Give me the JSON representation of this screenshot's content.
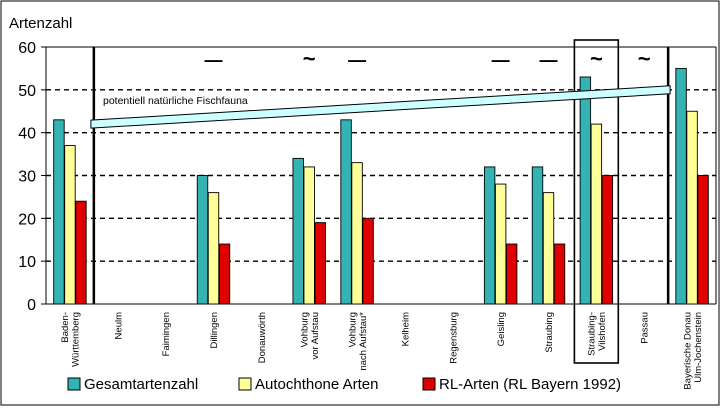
{
  "chart_data": {
    "type": "bar",
    "ylabel": "Artenzahl",
    "ylim": [
      0,
      60
    ],
    "yticks": [
      0,
      10,
      20,
      30,
      40,
      50,
      60
    ],
    "gridlines": [
      10,
      20,
      30,
      40,
      50
    ],
    "categories": [
      "Baden-\nWürttemberg",
      "Neulm",
      "Faimingen",
      "Dillingen",
      "Donauwörth",
      "Vohburg\nvor Aufstau",
      "Vohburg\nnach Aufstau*",
      "Kelheim",
      "Regensburg",
      "Geisling",
      "Straubing",
      "Straubing-\nVilshofen",
      "Passau",
      "Bayerische Donau\nUlm-Jochenstein"
    ],
    "series": [
      {
        "name": "Gesamtartenzahl",
        "color": "#33b3b3",
        "values": [
          43,
          null,
          null,
          30,
          null,
          34,
          43,
          null,
          null,
          32,
          32,
          53,
          null,
          55
        ]
      },
      {
        "name": "Autochthone Arten",
        "color": "#ffff99",
        "values": [
          37,
          null,
          null,
          26,
          null,
          32,
          33,
          null,
          null,
          28,
          26,
          42,
          null,
          45
        ]
      },
      {
        "name": "RL-Arten (RL Bayern 1992)",
        "color": "#e00000",
        "values": [
          24,
          null,
          null,
          14,
          null,
          19,
          20,
          null,
          null,
          14,
          14,
          30,
          null,
          30
        ]
      }
    ],
    "trend_marks": [
      {
        "category": 3,
        "symbol": "—"
      },
      {
        "category": 5,
        "symbol": "~"
      },
      {
        "category": 6,
        "symbol": "—"
      },
      {
        "category": 9,
        "symbol": "—"
      },
      {
        "category": 10,
        "symbol": "—"
      },
      {
        "category": 11,
        "symbol": "~"
      },
      {
        "category": 12,
        "symbol": "~"
      }
    ],
    "annotation": {
      "text": "potentiell natürliche Fischfauna",
      "y_start": 42,
      "y_end": 50
    },
    "highlighted_category": 11,
    "legend_placement": "bottom"
  }
}
